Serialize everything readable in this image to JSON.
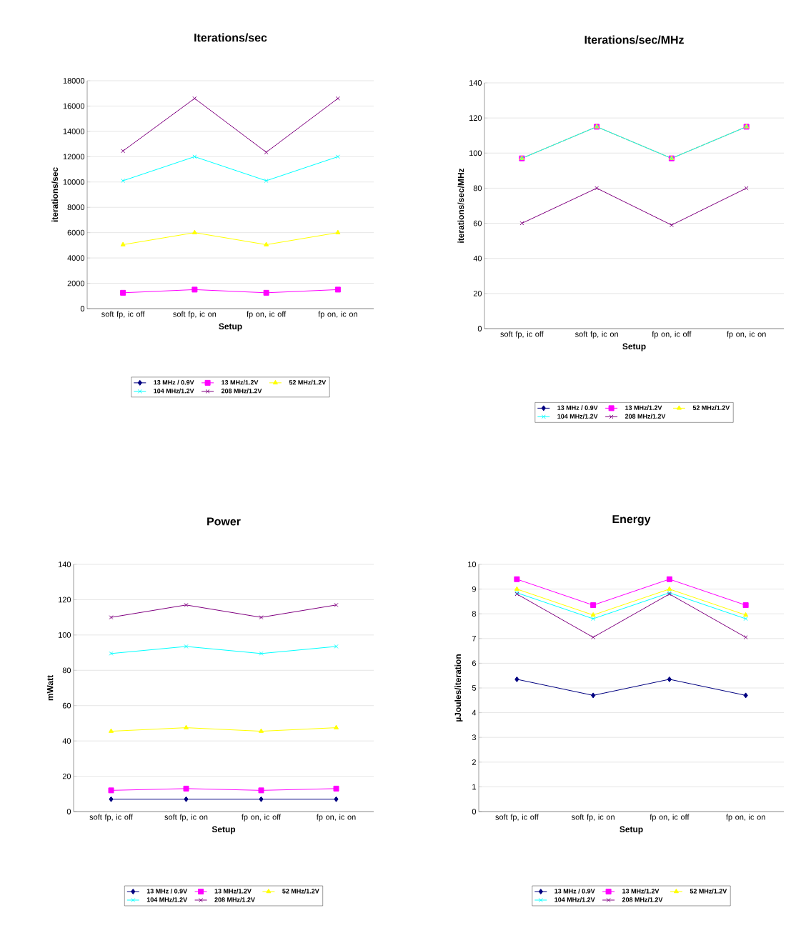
{
  "chart_data": [
    {
      "type": "line",
      "title": "Iterations/sec",
      "xlabel": "Setup",
      "ylabel": "iterations/sec",
      "categories": [
        "soft fp, ic off",
        "soft fp, ic on",
        "fp on, ic off",
        "fp on, ic on"
      ],
      "ylim": [
        0,
        18000
      ],
      "yticks": [
        0,
        2000,
        4000,
        6000,
        8000,
        10000,
        12000,
        14000,
        16000,
        18000
      ],
      "grid": "y",
      "legend": "bottom",
      "line_style": "solid",
      "series": [
        {
          "name": "13 MHz / 0.9V",
          "color": "#000080",
          "marker": "diamond",
          "values": [
            null,
            null,
            null,
            null
          ]
        },
        {
          "name": "13 MHz/1.2V",
          "color": "#ff00ff",
          "marker": "square",
          "values": [
            1250,
            1500,
            1250,
            1500
          ]
        },
        {
          "name": "52 MHz/1.2V",
          "color": "#ffff00",
          "marker": "triangle",
          "values": [
            5050,
            6000,
            5050,
            6000
          ]
        },
        {
          "name": "104 MHz/1.2V",
          "color": "#00ffff",
          "marker": "cross",
          "values": [
            10100,
            12000,
            10100,
            12000
          ]
        },
        {
          "name": "208 MHz/1.2V",
          "color": "#800080",
          "marker": "cross",
          "values": [
            12450,
            16600,
            12350,
            16600
          ]
        }
      ]
    },
    {
      "type": "line",
      "title": "Iterations/sec/MHz",
      "xlabel": "Setup",
      "ylabel": "iterations/sec/MHz",
      "categories": [
        "soft fp, ic off",
        "soft fp, ic on",
        "fp on, ic off",
        "fp on, ic on"
      ],
      "ylim": [
        0,
        140
      ],
      "yticks": [
        0,
        20,
        40,
        60,
        80,
        100,
        120,
        140
      ],
      "grid": "y",
      "legend": "bottom",
      "line_style": "solid",
      "series": [
        {
          "name": "13 MHz / 0.9V",
          "color": "#000080",
          "marker": "diamond",
          "values": [
            null,
            null,
            null,
            null
          ]
        },
        {
          "name": "13 MHz/1.2V",
          "color": "#ff00ff",
          "marker": "square",
          "values": [
            97,
            115,
            97,
            115
          ]
        },
        {
          "name": "52 MHz/1.2V",
          "color": "#ffff00",
          "marker": "triangle",
          "values": [
            97,
            115,
            97,
            115
          ]
        },
        {
          "name": "104 MHz/1.2V",
          "color": "#00ffff",
          "marker": "cross",
          "values": [
            97,
            115,
            97,
            115
          ]
        },
        {
          "name": "208 MHz/1.2V",
          "color": "#800080",
          "marker": "cross",
          "values": [
            60,
            80,
            59,
            80
          ]
        }
      ]
    },
    {
      "type": "line",
      "title": "Power",
      "xlabel": "Setup",
      "ylabel": "mWatt",
      "categories": [
        "soft fp, ic off",
        "soft fp, ic on",
        "fp on, ic off",
        "fp on, ic on"
      ],
      "ylim": [
        0,
        140
      ],
      "yticks": [
        0,
        20,
        40,
        60,
        80,
        100,
        120,
        140
      ],
      "grid": "y",
      "legend": "bottom",
      "line_style": "solid",
      "series": [
        {
          "name": "13 MHz / 0.9V",
          "color": "#000080",
          "marker": "diamond",
          "values": [
            7,
            7,
            7,
            7
          ]
        },
        {
          "name": "13 MHz/1.2V",
          "color": "#ff00ff",
          "marker": "square",
          "values": [
            12,
            13,
            12,
            13
          ]
        },
        {
          "name": "52 MHz/1.2V",
          "color": "#ffff00",
          "marker": "triangle",
          "values": [
            45.5,
            47.5,
            45.5,
            47.5
          ]
        },
        {
          "name": "104 MHz/1.2V",
          "color": "#00ffff",
          "marker": "cross",
          "values": [
            89.5,
            93.5,
            89.5,
            93.5
          ]
        },
        {
          "name": "208 MHz/1.2V",
          "color": "#800080",
          "marker": "cross",
          "values": [
            110,
            117,
            110,
            117
          ]
        }
      ]
    },
    {
      "type": "line",
      "title": "Energy",
      "xlabel": "Setup",
      "ylabel": "µJoules/iteration",
      "categories": [
        "soft fp, ic off",
        "soft fp, ic on",
        "fp on, ic off",
        "fp on, ic on"
      ],
      "ylim": [
        0,
        10
      ],
      "yticks": [
        0,
        1,
        2,
        3,
        4,
        5,
        6,
        7,
        8,
        9,
        10
      ],
      "grid": "y",
      "legend": "bottom",
      "line_style": "solid",
      "series": [
        {
          "name": "13 MHz / 0.9V",
          "color": "#000080",
          "marker": "diamond",
          "values": [
            5.35,
            4.7,
            5.35,
            4.7
          ]
        },
        {
          "name": "13 MHz/1.2V",
          "color": "#ff00ff",
          "marker": "square",
          "values": [
            9.4,
            8.35,
            9.4,
            8.35
          ]
        },
        {
          "name": "52 MHz/1.2V",
          "color": "#ffff00",
          "marker": "triangle",
          "values": [
            9.0,
            7.95,
            9.0,
            7.95
          ]
        },
        {
          "name": "104 MHz/1.2V",
          "color": "#00ffff",
          "marker": "cross",
          "values": [
            8.85,
            7.8,
            8.85,
            7.8
          ]
        },
        {
          "name": "208 MHz/1.2V",
          "color": "#800080",
          "marker": "cross",
          "values": [
            8.8,
            7.05,
            8.8,
            7.05
          ]
        }
      ]
    }
  ]
}
